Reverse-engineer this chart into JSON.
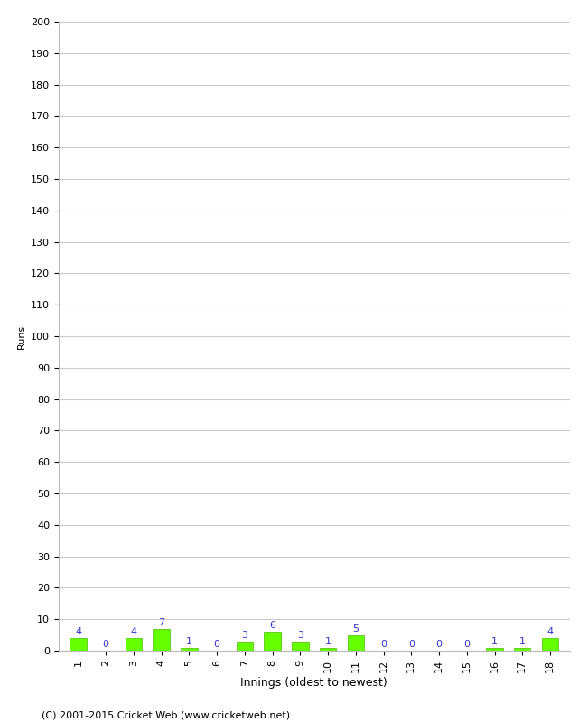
{
  "innings": [
    1,
    2,
    3,
    4,
    5,
    6,
    7,
    8,
    9,
    10,
    11,
    12,
    13,
    14,
    15,
    16,
    17,
    18
  ],
  "runs": [
    4,
    0,
    4,
    7,
    1,
    0,
    3,
    6,
    3,
    1,
    5,
    0,
    0,
    0,
    0,
    1,
    1,
    4
  ],
  "bar_color": "#66ff00",
  "bar_edge_color": "#44bb00",
  "label_color": "#3333cc",
  "xlabel": "Innings (oldest to newest)",
  "ylabel": "Runs",
  "ylim": [
    0,
    200
  ],
  "ytick_step": 10,
  "background_color": "#ffffff",
  "grid_color": "#cccccc",
  "footer": "(C) 2001-2015 Cricket Web (www.cricketweb.net)",
  "label_fontsize": 8,
  "axis_fontsize": 8,
  "xlabel_fontsize": 9,
  "ylabel_fontsize": 8,
  "footer_fontsize": 8
}
